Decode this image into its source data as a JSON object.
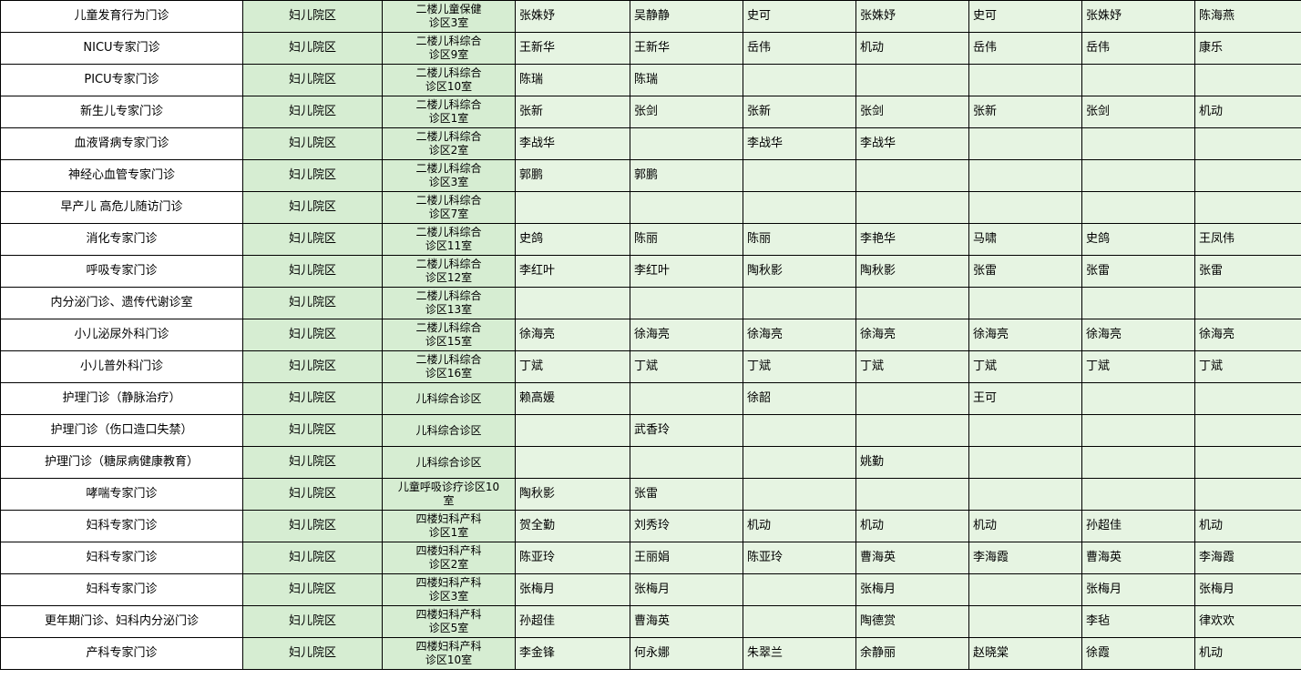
{
  "colors": {
    "clinic_fill": "#ffffff",
    "campus_fill": "#d6edd2",
    "doctor_fill": "#e6f4e2",
    "border_color": "#000000",
    "text_color": "#000000"
  },
  "table": {
    "description": "hospital-outpatient-clinic-schedule",
    "rows": [
      {
        "clinic": "儿童发育行为门诊",
        "campus": "妇儿院区",
        "room": "二楼儿童保健\n诊区3室",
        "doctors": [
          "张姝妤",
          "吴静静",
          "史可",
          "张姝妤",
          "史可",
          "张姝妤",
          "陈海燕"
        ]
      },
      {
        "clinic": "NICU专家门诊",
        "campus": "妇儿院区",
        "room": "二楼儿科综合\n诊区9室",
        "doctors": [
          "王新华",
          "王新华",
          "岳伟",
          "机动",
          "岳伟",
          "岳伟",
          "康乐"
        ]
      },
      {
        "clinic": "PICU专家门诊",
        "campus": "妇儿院区",
        "room": "二楼儿科综合\n诊区10室",
        "doctors": [
          "陈瑞",
          "陈瑞",
          "",
          "",
          "",
          "",
          ""
        ]
      },
      {
        "clinic": "新生儿专家门诊",
        "campus": "妇儿院区",
        "room": "二楼儿科综合\n诊区1室",
        "doctors": [
          "张新",
          "张剑",
          "张新",
          "张剑",
          "张新",
          "张剑",
          "机动"
        ]
      },
      {
        "clinic": "血液肾病专家门诊",
        "campus": "妇儿院区",
        "room": "二楼儿科综合\n诊区2室",
        "doctors": [
          "李战华",
          "",
          "李战华",
          "李战华",
          "",
          "",
          ""
        ]
      },
      {
        "clinic": "神经心血管专家门诊",
        "campus": "妇儿院区",
        "room": "二楼儿科综合\n诊区3室",
        "doctors": [
          "郭鹏",
          "郭鹏",
          "",
          "",
          "",
          "",
          ""
        ]
      },
      {
        "clinic": "早产儿 高危儿随访门诊",
        "campus": "妇儿院区",
        "room": "二楼儿科综合\n诊区7室",
        "doctors": [
          "",
          "",
          "",
          "",
          "",
          "",
          ""
        ]
      },
      {
        "clinic": "消化专家门诊",
        "campus": "妇儿院区",
        "room": "二楼儿科综合\n诊区11室",
        "doctors": [
          "史鸽",
          "陈丽",
          "陈丽",
          "李艳华",
          "马啸",
          "史鸽",
          "王凤伟"
        ]
      },
      {
        "clinic": "呼吸专家门诊",
        "campus": "妇儿院区",
        "room": "二楼儿科综合\n诊区12室",
        "doctors": [
          "李红叶",
          "李红叶",
          "陶秋影",
          "陶秋影",
          "张雷",
          "张雷",
          "张雷"
        ]
      },
      {
        "clinic": "内分泌门诊、遗传代谢诊室",
        "campus": "妇儿院区",
        "room": "二楼儿科综合\n诊区13室",
        "doctors": [
          "",
          "",
          "",
          "",
          "",
          "",
          ""
        ]
      },
      {
        "clinic": "小儿泌尿外科门诊",
        "campus": "妇儿院区",
        "room": "二楼儿科综合\n诊区15室",
        "doctors": [
          "徐海亮",
          "徐海亮",
          "徐海亮",
          "徐海亮",
          "徐海亮",
          "徐海亮",
          "徐海亮"
        ]
      },
      {
        "clinic": "小儿普外科门诊",
        "campus": "妇儿院区",
        "room": "二楼儿科综合\n诊区16室",
        "doctors": [
          "丁斌",
          "丁斌",
          "丁斌",
          "丁斌",
          "丁斌",
          "丁斌",
          "丁斌"
        ]
      },
      {
        "clinic": "护理门诊（静脉治疗）",
        "campus": "妇儿院区",
        "room": "儿科综合诊区",
        "doctors": [
          "赖高媛",
          "",
          "徐韶",
          "",
          "王可",
          "",
          ""
        ]
      },
      {
        "clinic": "护理门诊（伤口造口失禁）",
        "campus": "妇儿院区",
        "room": "儿科综合诊区",
        "doctors": [
          "",
          "武香玲",
          "",
          "",
          "",
          "",
          ""
        ]
      },
      {
        "clinic": "护理门诊（糖尿病健康教育）",
        "campus": "妇儿院区",
        "room": "儿科综合诊区",
        "doctors": [
          "",
          "",
          "",
          "姚勤",
          "",
          "",
          ""
        ]
      },
      {
        "clinic": "哮喘专家门诊",
        "campus": "妇儿院区",
        "room": "儿童呼吸诊疗诊区10\n室",
        "doctors": [
          "陶秋影",
          "张雷",
          "",
          "",
          "",
          "",
          ""
        ]
      },
      {
        "clinic": "妇科专家门诊",
        "campus": "妇儿院区",
        "room": "四楼妇科产科\n诊区1室",
        "doctors": [
          "贺全勤",
          "刘秀玲",
          "机动",
          "机动",
          "机动",
          "孙超佳",
          "机动"
        ]
      },
      {
        "clinic": "妇科专家门诊",
        "campus": "妇儿院区",
        "room": "四楼妇科产科\n诊区2室",
        "doctors": [
          "陈亚玲",
          "王丽娟",
          "陈亚玲",
          "曹海英",
          "李海霞",
          "曹海英",
          "李海霞"
        ]
      },
      {
        "clinic": "妇科专家门诊",
        "campus": "妇儿院区",
        "room": "四楼妇科产科\n诊区3室",
        "doctors": [
          "张梅月",
          "张梅月",
          "",
          "张梅月",
          "",
          "张梅月",
          "张梅月"
        ]
      },
      {
        "clinic": "更年期门诊、妇科内分泌门诊",
        "campus": "妇儿院区",
        "room": "四楼妇科产科\n诊区5室",
        "doctors": [
          "孙超佳",
          "曹海英",
          "",
          "陶德赏",
          "",
          "李毡",
          "律欢欢"
        ]
      },
      {
        "clinic": "产科专家门诊",
        "campus": "妇儿院区",
        "room": "四楼妇科产科\n诊区10室",
        "doctors": [
          "李金锋",
          "何永娜",
          "朱翠兰",
          "余静丽",
          "赵晓棠",
          "徐霞",
          "机动"
        ]
      }
    ]
  }
}
